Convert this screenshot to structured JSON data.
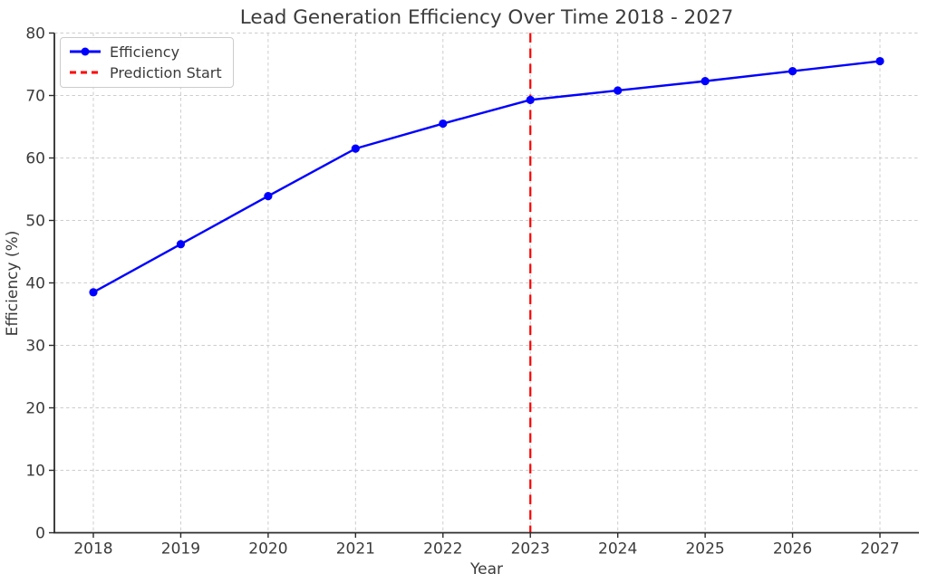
{
  "chart_data": {
    "type": "line",
    "title": "Lead Generation Efficiency Over Time 2018 - 2027",
    "xlabel": "Year",
    "ylabel": "Efficiency (%)",
    "categories": [
      "2018",
      "2019",
      "2020",
      "2021",
      "2022",
      "2023",
      "2024",
      "2025",
      "2026",
      "2027"
    ],
    "series": [
      {
        "name": "Efficiency",
        "marker": "circle",
        "line_style": "solid",
        "color": "#0000ff",
        "values": [
          38.5,
          46.2,
          53.9,
          61.5,
          65.5,
          69.3,
          70.8,
          72.3,
          73.9,
          75.5
        ]
      }
    ],
    "annotations": [
      {
        "name": "Prediction Start",
        "type": "vline",
        "x": "2023",
        "color": "#ff0000",
        "line_style": "dashed"
      }
    ],
    "ylim": [
      0,
      80
    ],
    "yticks": [
      0,
      10,
      20,
      30,
      40,
      50,
      60,
      70,
      80
    ],
    "grid": "dashed-both-axes",
    "legend_position": "upper-left",
    "colors": {
      "series_line": "#0000ff",
      "prediction_line": "#ff0000",
      "grid": "#cdcdcd",
      "spine": "#2b2b2b",
      "text": "#3b3b3b",
      "legend_border": "#cccccc",
      "background": "#ffffff"
    }
  }
}
